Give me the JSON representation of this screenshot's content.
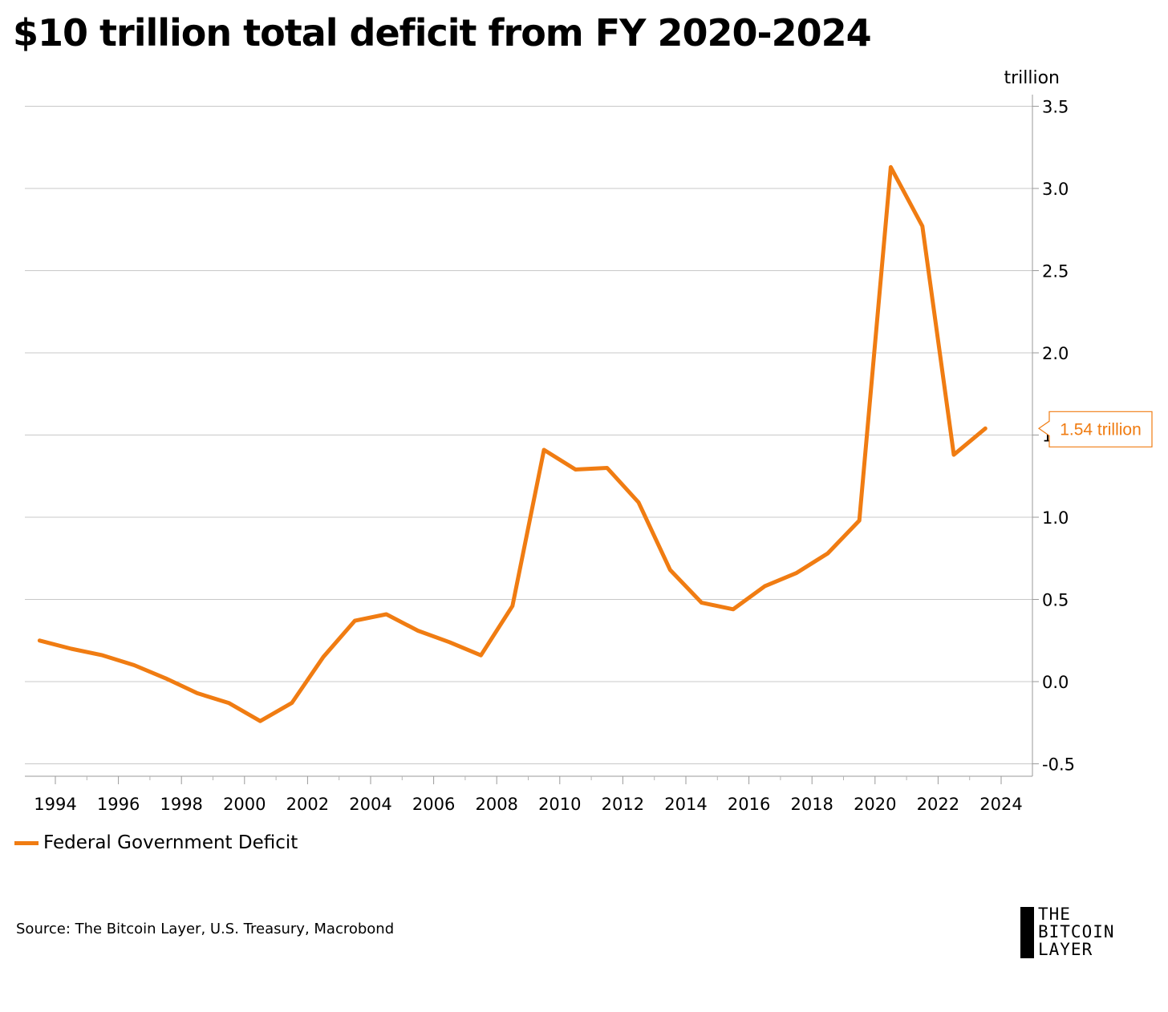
{
  "chart_data": {
    "type": "line",
    "title": "$10 trillion total deficit from FY 2020-2024",
    "unit_label": "trillion",
    "x_label": "",
    "y_label": "",
    "xlim": [
      1993,
      2025
    ],
    "ylim": [
      -0.55,
      3.6
    ],
    "y_ticks": [
      -0.5,
      0.0,
      0.5,
      1.0,
      1.5,
      2.0,
      2.5,
      3.0,
      3.5
    ],
    "y_tick_labels": [
      "-0.5",
      "0.0",
      "0.5",
      "1.0",
      "1.5",
      "2.0",
      "2.5",
      "3.0",
      "3.5"
    ],
    "x_ticks": [
      1994,
      1996,
      1998,
      2000,
      2002,
      2004,
      2006,
      2008,
      2010,
      2012,
      2014,
      2016,
      2018,
      2020,
      2022,
      2024
    ],
    "x_tick_labels": [
      "1994",
      "1996",
      "1998",
      "2000",
      "2002",
      "2004",
      "2006",
      "2008",
      "2010",
      "2012",
      "2014",
      "2016",
      "2018",
      "2020",
      "2022",
      "2024"
    ],
    "y_axis_side": "right",
    "grid": "horizontal",
    "legend_position": "bottom-left",
    "series": [
      {
        "name": "Federal Government Deficit",
        "color": "#F07C12",
        "points": [
          [
            1993.5,
            0.25
          ],
          [
            1994.5,
            0.2
          ],
          [
            1995.5,
            0.16
          ],
          [
            1996.5,
            0.1
          ],
          [
            1997.5,
            0.02
          ],
          [
            1998.5,
            -0.07
          ],
          [
            1999.5,
            -0.13
          ],
          [
            2000.5,
            -0.24
          ],
          [
            2001.5,
            -0.13
          ],
          [
            2002.5,
            0.15
          ],
          [
            2003.5,
            0.37
          ],
          [
            2004.5,
            0.41
          ],
          [
            2005.5,
            0.31
          ],
          [
            2006.5,
            0.24
          ],
          [
            2007.5,
            0.16
          ],
          [
            2008.5,
            0.46
          ],
          [
            2009.5,
            1.41
          ],
          [
            2010.5,
            1.29
          ],
          [
            2011.5,
            1.3
          ],
          [
            2012.5,
            1.09
          ],
          [
            2013.5,
            0.68
          ],
          [
            2014.5,
            0.48
          ],
          [
            2015.5,
            0.44
          ],
          [
            2016.5,
            0.58
          ],
          [
            2017.5,
            0.66
          ],
          [
            2018.5,
            0.78
          ],
          [
            2019.5,
            0.98
          ],
          [
            2020.5,
            3.13
          ],
          [
            2021.5,
            2.77
          ],
          [
            2022.5,
            1.38
          ],
          [
            2023.5,
            1.54
          ]
        ]
      }
    ],
    "annotations": [
      {
        "text": "1.54 trillion",
        "value": 1.54,
        "color": "#F07C12"
      }
    ],
    "source": "Source: The Bitcoin Layer, U.S. Treasury, Macrobond"
  },
  "brand": {
    "lines": [
      "THE",
      "BITCOIN",
      "LAYER"
    ]
  }
}
